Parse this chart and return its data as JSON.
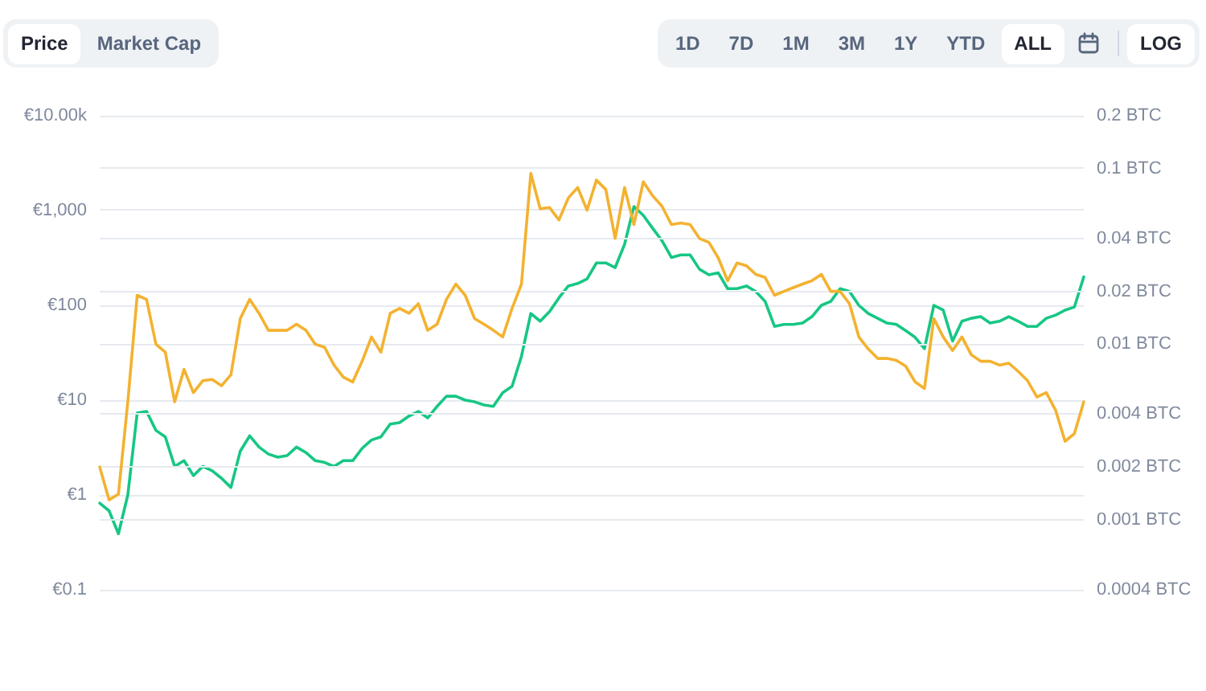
{
  "chart_data": [
    {
      "type": "line",
      "annotations": [
        "Price",
        "Market Cap",
        "1D",
        "7D",
        "1M",
        "3M",
        "1Y",
        "YTD",
        "ALL",
        "LOG"
      ],
      "categories": [
        null,
        null,
        null,
        null,
        null,
        null,
        null,
        null,
        null,
        null,
        null,
        null,
        null,
        null,
        null,
        null,
        null,
        null,
        null,
        null,
        null,
        null,
        null,
        null,
        null,
        null,
        null,
        null,
        null,
        null,
        null,
        null,
        null,
        null,
        null,
        null,
        null,
        null,
        null,
        null,
        null,
        null,
        null,
        null,
        null,
        null,
        null,
        null,
        null,
        null,
        null,
        null,
        null,
        null,
        null,
        null,
        null,
        null,
        null,
        null,
        null,
        null,
        null,
        null,
        null,
        null,
        null,
        null,
        null,
        null,
        null,
        null,
        null,
        null,
        null,
        null,
        null,
        null,
        null,
        null,
        null,
        null,
        null,
        null,
        null,
        null,
        null,
        null,
        null,
        null,
        null,
        null,
        null,
        null,
        null,
        null,
        null,
        null,
        null,
        null,
        null,
        null,
        null,
        null,
        null,
        null
      ],
      "series": [
        {
          "color": "#16c784",
          "values": [
            0.82,
            0.68,
            0.39,
            1.0,
            7.3,
            7.6,
            4.8,
            4.1,
            2.0,
            2.3,
            1.6,
            2.0,
            1.8,
            1.5,
            1.2,
            2.9,
            4.2,
            3.2,
            2.7,
            2.5,
            2.6,
            3.2,
            2.8,
            2.3,
            2.2,
            2.0,
            2.3,
            2.3,
            3.1,
            3.8,
            4.1,
            5.6,
            5.8,
            6.8,
            7.6,
            6.5,
            8.6,
            11,
            11,
            10,
            9.6,
            8.9,
            8.6,
            12,
            14,
            29,
            82,
            68,
            86,
            120,
            160,
            170,
            190,
            280,
            280,
            250,
            440,
            1100,
            890,
            650,
            480,
            320,
            340,
            340,
            240,
            210,
            220,
            150,
            150,
            160,
            140,
            110,
            60,
            63,
            63,
            65,
            76,
            100,
            110,
            150,
            140,
            100,
            82,
            73,
            65,
            63,
            54,
            46,
            35,
            100,
            89,
            42,
            68,
            73,
            76,
            65,
            68,
            76,
            68,
            60,
            60,
            73,
            79,
            89,
            96,
            200
          ]
        }
      ],
      "ylim": [
        0.1,
        10000
      ],
      "yticks": [
        {
          "value": 0.1,
          "label": "€0.1"
        },
        {
          "value": 1,
          "label": "€1"
        },
        {
          "value": 10,
          "label": "€10"
        },
        {
          "value": 100,
          "label": "€100"
        },
        {
          "value": 1000,
          "label": "€1,000"
        },
        {
          "value": 10000,
          "label": "€10.00k"
        }
      ],
      "log": true,
      "grid": "y",
      "marker": "none"
    },
    {
      "type": "line",
      "categories": [
        null,
        null,
        null,
        null,
        null,
        null,
        null,
        null,
        null,
        null,
        null,
        null,
        null,
        null,
        null,
        null,
        null,
        null,
        null,
        null,
        null,
        null,
        null,
        null,
        null,
        null,
        null,
        null,
        null,
        null,
        null,
        null,
        null,
        null,
        null,
        null,
        null,
        null,
        null,
        null,
        null,
        null,
        null,
        null,
        null,
        null,
        null,
        null,
        null,
        null,
        null,
        null,
        null,
        null,
        null,
        null,
        null,
        null,
        null,
        null,
        null,
        null,
        null,
        null,
        null,
        null,
        null,
        null,
        null,
        null,
        null,
        null,
        null,
        null,
        null,
        null,
        null,
        null,
        null,
        null,
        null,
        null,
        null,
        null,
        null,
        null,
        null,
        null,
        null,
        null,
        null,
        null,
        null,
        null,
        null,
        null,
        null,
        null,
        null,
        null,
        null,
        null,
        null,
        null,
        null,
        null
      ],
      "series": [
        {
          "color": "#f3b230",
          "values": [
            0.002,
            0.0013,
            0.0014,
            0.0047,
            0.019,
            0.018,
            0.01,
            0.009,
            0.0047,
            0.0072,
            0.0053,
            0.0062,
            0.0063,
            0.0058,
            0.0067,
            0.014,
            0.018,
            0.015,
            0.012,
            0.012,
            0.012,
            0.013,
            0.012,
            0.01,
            0.0096,
            0.0076,
            0.0065,
            0.0061,
            0.008,
            0.011,
            0.009,
            0.015,
            0.016,
            0.015,
            0.017,
            0.012,
            0.013,
            0.018,
            0.022,
            0.019,
            0.014,
            0.013,
            0.012,
            0.011,
            0.016,
            0.022,
            0.094,
            0.059,
            0.06,
            0.051,
            0.068,
            0.078,
            0.058,
            0.086,
            0.076,
            0.04,
            0.078,
            0.048,
            0.084,
            0.07,
            0.061,
            0.048,
            0.049,
            0.048,
            0.04,
            0.038,
            0.031,
            0.023,
            0.029,
            0.028,
            0.025,
            0.024,
            0.019,
            0.02,
            0.021,
            0.022,
            0.023,
            0.025,
            0.02,
            0.02,
            0.017,
            0.011,
            0.0094,
            0.0083,
            0.0083,
            0.0081,
            0.0075,
            0.0061,
            0.0056,
            0.014,
            0.011,
            0.0092,
            0.011,
            0.0087,
            0.008,
            0.008,
            0.0076,
            0.0078,
            0.007,
            0.0062,
            0.005,
            0.0053,
            0.0042,
            0.0028,
            0.0031,
            0.0047
          ]
        }
      ],
      "ylim": [
        0.0004,
        0.2
      ],
      "yticks": [
        {
          "value": 0.0004,
          "label": "0.0004 BTC"
        },
        {
          "value": 0.001,
          "label": "0.001 BTC"
        },
        {
          "value": 0.002,
          "label": "0.002 BTC"
        },
        {
          "value": 0.004,
          "label": "0.004 BTC"
        },
        {
          "value": 0.01,
          "label": "0.01 BTC"
        },
        {
          "value": 0.02,
          "label": "0.02 BTC"
        },
        {
          "value": 0.04,
          "label": "0.04 BTC"
        },
        {
          "value": 0.1,
          "label": "0.1 BTC"
        },
        {
          "value": 0.2,
          "label": "0.2 BTC"
        }
      ],
      "log": true,
      "grid": "y",
      "marker": "none"
    }
  ]
}
